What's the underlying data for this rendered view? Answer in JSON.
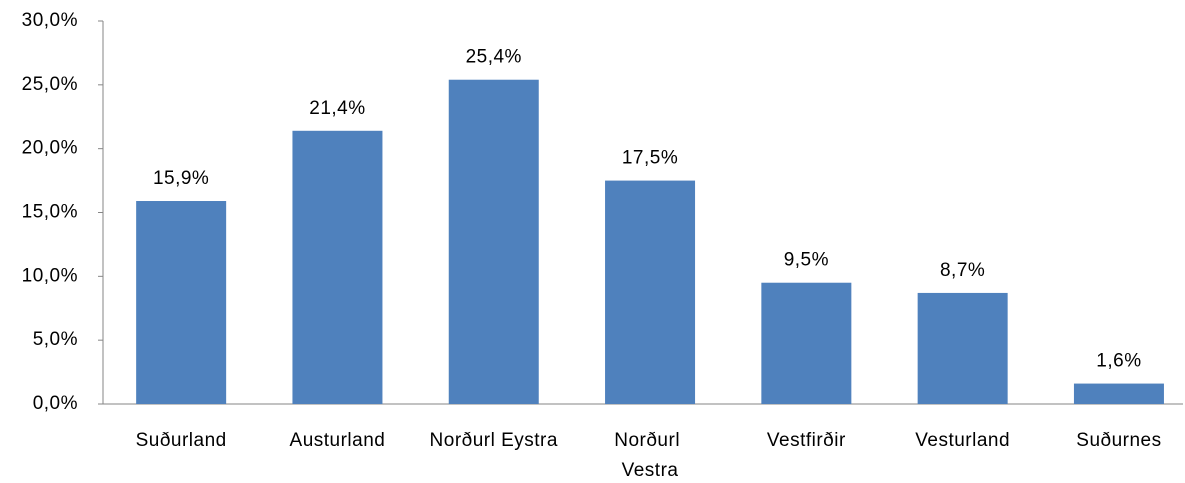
{
  "chart_data": {
    "type": "bar",
    "categories": [
      "Suðurland",
      "Austurland",
      "Norðurl Eystra",
      "Norðurl Vestra",
      "Vestfirðir",
      "Vesturland",
      "Suðurnes"
    ],
    "values": [
      15.9,
      21.4,
      25.4,
      17.5,
      9.5,
      8.7,
      1.6
    ],
    "value_labels": [
      "15,9%",
      "21,4%",
      "25,4%",
      "17,5%",
      "9,5%",
      "8,7%",
      "1,6%"
    ],
    "color": "#4f81bd",
    "ylim": [
      0,
      30
    ],
    "yticks": [
      {
        "value": 0,
        "label": "0,0%"
      },
      {
        "value": 5,
        "label": "5,0%"
      },
      {
        "value": 10,
        "label": "10,0%"
      },
      {
        "value": 15,
        "label": "15,0%"
      },
      {
        "value": 20,
        "label": "20,0%"
      },
      {
        "value": 25,
        "label": "25,0%"
      },
      {
        "value": 30,
        "label": "30,0%"
      }
    ],
    "grid": false
  }
}
